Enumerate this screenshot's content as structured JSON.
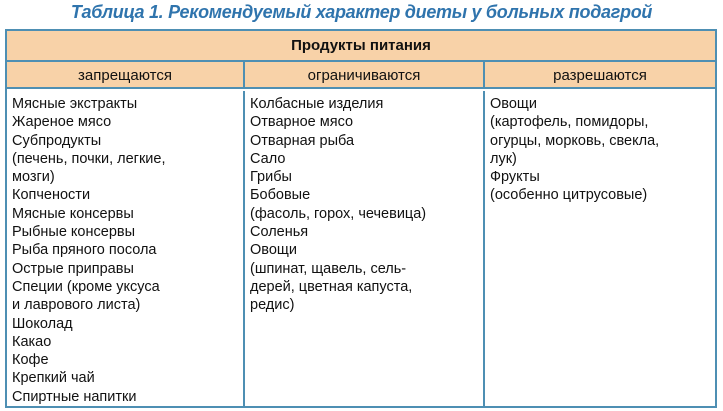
{
  "title": "Таблица 1. Рекомендуемый характер диеты у больных подагрой",
  "table": {
    "header": "Продукты питания",
    "columns": [
      {
        "label": "запрещаются",
        "items": [
          "Мясные экстракты",
          "Жареное мясо",
          "Субпродукты",
          "(печень, почки, легкие,",
          "мозги)",
          "Копчености",
          "Мясные консервы",
          "Рыбные консервы",
          "Рыба пряного посола",
          "Острые приправы",
          "Специи (кроме уксуса",
          "и лаврового листа)",
          "Шоколад",
          "Какао",
          "Кофе",
          "Крепкий чай",
          "Спиртные напитки"
        ]
      },
      {
        "label": "ограничиваются",
        "items": [
          "Колбасные изделия",
          "Отварное мясо",
          "Отварная рыба",
          "Сало",
          "Грибы",
          "Бобовые",
          "(фасоль, горох, чечевица)",
          "Соленья",
          "Овощи",
          "(шпинат, щавель, сель-",
          "дерей, цветная капуста,",
          "редис)"
        ]
      },
      {
        "label": "разрешаются",
        "items": [
          "Овощи",
          "(картофель, помидоры,",
          "огурцы, морковь, свекла,",
          "лук)",
          "Фрукты",
          "(особенно цитрусовые)"
        ]
      }
    ]
  }
}
